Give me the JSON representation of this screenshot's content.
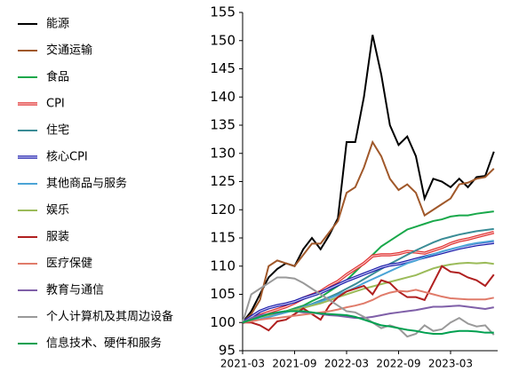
{
  "chart_data": {
    "type": "line",
    "categories": [
      "2021-03",
      null,
      null,
      null,
      null,
      null,
      "2021-09",
      null,
      null,
      null,
      null,
      null,
      "2022-03",
      null,
      null,
      null,
      null,
      null,
      "2022-09",
      null,
      null,
      null,
      null,
      null,
      "2023-03",
      null,
      null,
      null,
      null,
      null
    ],
    "ylim": [
      95,
      155
    ],
    "yticks": [
      95,
      100,
      105,
      110,
      115,
      120,
      125,
      130,
      135,
      140,
      145,
      150,
      155
    ],
    "series": [
      {
        "name": "能源",
        "color": "#000000",
        "values": [
          100,
          102,
          105,
          108,
          109.5,
          110.5,
          110,
          113,
          115,
          113,
          115.5,
          118.5,
          132,
          132,
          140,
          151,
          144,
          135,
          131.5,
          133,
          129.5,
          122,
          125.5,
          125,
          124,
          125.5,
          124,
          125.8,
          126,
          130.3
        ]
      },
      {
        "name": "交通运输",
        "color": "#a0582a",
        "values": [
          100,
          101.5,
          104,
          110,
          111,
          110.5,
          110,
          112,
          114,
          114,
          116,
          118,
          123,
          124,
          127.5,
          132,
          129.5,
          125.5,
          123.5,
          124.5,
          123,
          119,
          120,
          121,
          122,
          124.5,
          124.8,
          125.5,
          125.8,
          127.3
        ]
      },
      {
        "name": "食品",
        "color": "#18a84a",
        "values": [
          100,
          100.3,
          100.6,
          101,
          101.5,
          102,
          102.5,
          103,
          103.8,
          104.5,
          105.5,
          106.5,
          107.5,
          109,
          110.5,
          112,
          113.5,
          114.5,
          115.5,
          116.5,
          117,
          117.5,
          118,
          118.3,
          118.8,
          119,
          119,
          119.3,
          119.5,
          119.7
        ]
      },
      {
        "name": "CPI",
        "color": "#e03030",
        "inner_color": "#f8c8c8",
        "values": [
          100,
          100.6,
          101.3,
          101.8,
          102.3,
          102.8,
          103.5,
          104.3,
          104.9,
          105.5,
          106.5,
          107.3,
          108.5,
          109.5,
          110.5,
          111.8,
          112,
          112,
          112.2,
          112.6,
          112.5,
          112.3,
          112.8,
          113.3,
          114,
          114.5,
          114.8,
          115.2,
          115.6,
          116
        ]
      },
      {
        "name": "住宅",
        "color": "#3a8c96",
        "values": [
          100,
          100.3,
          100.6,
          101,
          101.4,
          101.8,
          102.3,
          102.8,
          103.3,
          103.9,
          104.5,
          105.2,
          106,
          106.8,
          107.7,
          108.6,
          109.5,
          110.4,
          111.2,
          112,
          112.8,
          113.5,
          114.2,
          114.8,
          115.2,
          115.6,
          115.9,
          116.2,
          116.4,
          116.6
        ]
      },
      {
        "name": "核心CPI",
        "color": "#1a1aa8",
        "inner_color": "#c8c8f4",
        "values": [
          100,
          101,
          102,
          102.6,
          103,
          103.3,
          103.7,
          104.3,
          104.8,
          105.3,
          106,
          106.7,
          107.4,
          108,
          108.6,
          109.2,
          109.8,
          110.2,
          110.4,
          110.8,
          111.2,
          111.6,
          112,
          112.4,
          112.8,
          113.2,
          113.5,
          113.8,
          114,
          114.2
        ]
      },
      {
        "name": "其他商品与服务",
        "color": "#4ba4d6",
        "values": [
          100,
          100.3,
          100.6,
          101,
          101.4,
          101.8,
          102.2,
          102.7,
          103.2,
          103.7,
          104.3,
          104.9,
          105.5,
          106.2,
          107,
          107.7,
          108.4,
          109.1,
          109.8,
          110.5,
          111,
          111.6,
          112.1,
          112.6,
          113,
          113.4,
          113.8,
          114.1,
          114.3,
          114.5
        ]
      },
      {
        "name": "娱乐",
        "color": "#9bbb59",
        "values": [
          100,
          100.5,
          101,
          101.3,
          101.7,
          102,
          102.2,
          102.6,
          103,
          103.4,
          103.9,
          104.5,
          105,
          105.5,
          106,
          106.4,
          106.8,
          107.2,
          107.6,
          108,
          108.4,
          109,
          109.6,
          110,
          110.3,
          110.5,
          110.6,
          110.5,
          110.6,
          110.4
        ]
      },
      {
        "name": "服装",
        "color": "#b02020",
        "values": [
          100,
          100,
          99.5,
          98.6,
          100.2,
          100.5,
          101.5,
          102.5,
          101.5,
          100.5,
          103,
          104.5,
          105.5,
          106,
          106.5,
          105,
          107.5,
          107,
          105.5,
          104.5,
          104.5,
          104,
          107,
          110,
          109,
          108.8,
          108,
          107.5,
          106.5,
          108.5
        ]
      },
      {
        "name": "医疗保健",
        "color": "#e07b6a",
        "values": [
          100,
          100.2,
          100.5,
          100.7,
          100.8,
          101,
          101.2,
          101.4,
          101.6,
          101.8,
          102,
          102.3,
          102.7,
          103,
          103.4,
          104,
          104.8,
          105.3,
          105.6,
          105.5,
          105.8,
          105.4,
          105,
          104.6,
          104.3,
          104.2,
          104.1,
          104.1,
          104.1,
          104.4
        ]
      },
      {
        "name": "教育与通信",
        "color": "#7f5fa8",
        "values": [
          100,
          100.8,
          101.3,
          101.5,
          101.7,
          102,
          102,
          101.8,
          101.8,
          101.5,
          101.3,
          101.2,
          101,
          100.8,
          100.8,
          101,
          101.3,
          101.6,
          101.8,
          102,
          102.2,
          102.5,
          102.8,
          102.8,
          102.9,
          103,
          102.8,
          102.6,
          102.4,
          102.7
        ]
      },
      {
        "name": "个人计算机及其周边设备",
        "color": "#999999",
        "values": [
          100,
          105,
          106,
          107,
          108,
          108,
          107.8,
          107,
          106,
          105,
          104,
          103,
          102,
          101.8,
          101,
          100,
          99,
          99.5,
          99,
          97.5,
          98,
          99.5,
          98.5,
          98.8,
          100,
          100.8,
          99.8,
          99.3,
          99.5,
          97.8
        ]
      },
      {
        "name": "信息技术、硬件和服务",
        "color": "#00a050",
        "values": [
          100,
          100.5,
          101,
          101.5,
          101.8,
          102,
          102,
          102,
          101.8,
          101.6,
          101.5,
          101.4,
          101.3,
          101,
          100.5,
          100,
          99.5,
          99.3,
          99,
          98.7,
          98.5,
          98.2,
          98,
          98,
          98.3,
          98.5,
          98.5,
          98.4,
          98.2,
          98.2
        ]
      }
    ]
  }
}
